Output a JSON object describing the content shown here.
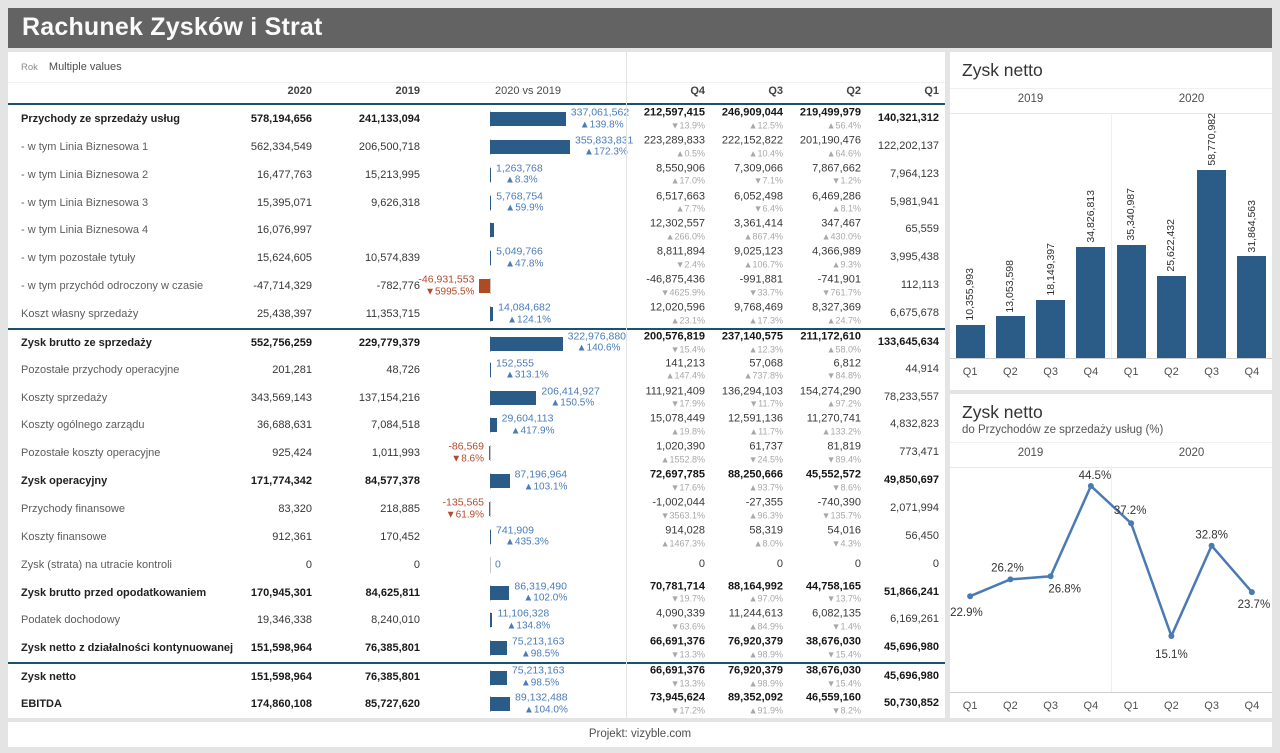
{
  "header": {
    "title": "Rachunek Zysków i Strat"
  },
  "filter": {
    "label": "Rok",
    "value": "Multiple values"
  },
  "colors": {
    "titlebar_bg": "#636363",
    "bar_positive": "#2b5c88",
    "bar_negative": "#b04a22",
    "diff_label_positive": "#4a7cba",
    "diff_label_negative": "#b34a2b",
    "separator_line": "#19536e",
    "line_series": "#4a7ab3"
  },
  "table": {
    "columns": {
      "c2020": "2020",
      "c2019": "2019",
      "cdiff": "2020 vs 2019",
      "q4": "Q4",
      "q3": "Q3",
      "q2": "Q2",
      "q1": "Q1"
    },
    "diff_axis_max": 355833831,
    "rows": [
      {
        "label": "Przychody ze sprzedaży usług",
        "bold": true,
        "sep_above": false,
        "y2020": "578,194,656",
        "y2019": "241,133,094",
        "diff": {
          "num": 337061562,
          "text": "337,061,562",
          "pct": "139.8%",
          "dir": "up",
          "show_label": true
        },
        "quarters": [
          {
            "v": "212,597,415",
            "pct": "13.9%",
            "dir": "down"
          },
          {
            "v": "246,909,044",
            "pct": "12.5%",
            "dir": "up"
          },
          {
            "v": "219,499,979",
            "pct": "56.4%",
            "dir": "up"
          },
          {
            "v": "140,321,312"
          }
        ]
      },
      {
        "label": "- w tym Linia Biznesowa 1",
        "bold": false,
        "sep_above": false,
        "y2020": "562,334,549",
        "y2019": "206,500,718",
        "diff": {
          "num": 355833831,
          "text": "355,833,831",
          "pct": "172.3%",
          "dir": "up",
          "show_label": true
        },
        "quarters": [
          {
            "v": "223,289,833",
            "pct": "0.5%",
            "dir": "up"
          },
          {
            "v": "222,152,822",
            "pct": "10.4%",
            "dir": "up"
          },
          {
            "v": "201,190,476",
            "pct": "64.6%",
            "dir": "up"
          },
          {
            "v": "122,202,137"
          }
        ]
      },
      {
        "label": "- w tym Linia Biznesowa 2",
        "bold": false,
        "sep_above": false,
        "y2020": "16,477,763",
        "y2019": "15,213,995",
        "diff": {
          "num": 1263768,
          "text": "1,263,768",
          "pct": "8.3%",
          "dir": "up",
          "show_label": true
        },
        "quarters": [
          {
            "v": "8,550,906",
            "pct": "17.0%",
            "dir": "up"
          },
          {
            "v": "7,309,066",
            "pct": "7.1%",
            "dir": "down"
          },
          {
            "v": "7,867,662",
            "pct": "1.2%",
            "dir": "down"
          },
          {
            "v": "7,964,123"
          }
        ]
      },
      {
        "label": "- w tym Linia Biznesowa 3",
        "bold": false,
        "sep_above": false,
        "y2020": "15,395,071",
        "y2019": "9,626,318",
        "diff": {
          "num": 5768754,
          "text": "5,768,754",
          "pct": "59.9%",
          "dir": "up",
          "show_label": true
        },
        "quarters": [
          {
            "v": "6,517,663",
            "pct": "7.7%",
            "dir": "up"
          },
          {
            "v": "6,052,498",
            "pct": "6.4%",
            "dir": "down"
          },
          {
            "v": "6,469,286",
            "pct": "8.1%",
            "dir": "up"
          },
          {
            "v": "5,981,941"
          }
        ]
      },
      {
        "label": "- w tym Linia Biznesowa 4",
        "bold": false,
        "sep_above": false,
        "y2020": "16,076,997",
        "y2019": "",
        "diff": {
          "num": 16076997,
          "text": "",
          "pct": "",
          "dir": "up",
          "show_label": false
        },
        "quarters": [
          {
            "v": "12,302,557",
            "pct": "266.0%",
            "dir": "up"
          },
          {
            "v": "3,361,414",
            "pct": "867.4%",
            "dir": "up"
          },
          {
            "v": "347,467",
            "pct": "430.0%",
            "dir": "up"
          },
          {
            "v": "65,559"
          }
        ]
      },
      {
        "label": "- w tym pozostałe tytuły",
        "bold": false,
        "sep_above": false,
        "y2020": "15,624,605",
        "y2019": "10,574,839",
        "diff": {
          "num": 5049766,
          "text": "5,049,766",
          "pct": "47.8%",
          "dir": "up",
          "show_label": true
        },
        "quarters": [
          {
            "v": "8,811,894",
            "pct": "2.4%",
            "dir": "down"
          },
          {
            "v": "9,025,123",
            "pct": "106.7%",
            "dir": "up"
          },
          {
            "v": "4,366,989",
            "pct": "9.3%",
            "dir": "up"
          },
          {
            "v": "3,995,438"
          }
        ]
      },
      {
        "label": "- w tym przychód odroczony w czasie",
        "bold": false,
        "sep_above": false,
        "y2020": "-47,714,329",
        "y2019": "-782,776",
        "diff": {
          "num": -46931553,
          "text": "-46,931,553",
          "pct": "5995.5%",
          "dir": "down",
          "show_label": true
        },
        "quarters": [
          {
            "v": "-46,875,436",
            "pct": "4625.9%",
            "dir": "down"
          },
          {
            "v": "-991,881",
            "pct": "33.7%",
            "dir": "down"
          },
          {
            "v": "-741,901",
            "pct": "761.7%",
            "dir": "down"
          },
          {
            "v": "112,113"
          }
        ]
      },
      {
        "label": "Koszt własny sprzedaży",
        "bold": false,
        "sep_above": false,
        "y2020": "25,438,397",
        "y2019": "11,353,715",
        "diff": {
          "num": 14084682,
          "text": "14,084,682",
          "pct": "124.1%",
          "dir": "up",
          "show_label": true
        },
        "quarters": [
          {
            "v": "12,020,596",
            "pct": "23.1%",
            "dir": "up"
          },
          {
            "v": "9,768,469",
            "pct": "17.3%",
            "dir": "up"
          },
          {
            "v": "8,327,369",
            "pct": "24.7%",
            "dir": "up"
          },
          {
            "v": "6,675,678"
          }
        ]
      },
      {
        "label": "Zysk brutto ze sprzedaży",
        "bold": true,
        "sep_above": true,
        "y2020": "552,756,259",
        "y2019": "229,779,379",
        "diff": {
          "num": 322976880,
          "text": "322,976,880",
          "pct": "140.6%",
          "dir": "up",
          "show_label": true
        },
        "quarters": [
          {
            "v": "200,576,819",
            "pct": "15.4%",
            "dir": "down"
          },
          {
            "v": "237,140,575",
            "pct": "12.3%",
            "dir": "up"
          },
          {
            "v": "211,172,610",
            "pct": "58.0%",
            "dir": "up"
          },
          {
            "v": "133,645,634"
          }
        ]
      },
      {
        "label": "Pozostałe przychody operacyjne",
        "bold": false,
        "sep_above": false,
        "y2020": "201,281",
        "y2019": "48,726",
        "diff": {
          "num": 152555,
          "text": "152,555",
          "pct": "313.1%",
          "dir": "up",
          "show_label": true
        },
        "quarters": [
          {
            "v": "141,213",
            "pct": "147.4%",
            "dir": "up"
          },
          {
            "v": "57,068",
            "pct": "737.8%",
            "dir": "up"
          },
          {
            "v": "6,812",
            "pct": "84.8%",
            "dir": "down"
          },
          {
            "v": "44,914"
          }
        ]
      },
      {
        "label": "Koszty sprzedaży",
        "bold": false,
        "sep_above": false,
        "y2020": "343,569,143",
        "y2019": "137,154,216",
        "diff": {
          "num": 206414927,
          "text": "206,414,927",
          "pct": "150.5%",
          "dir": "up",
          "show_label": true
        },
        "quarters": [
          {
            "v": "111,921,409",
            "pct": "17.9%",
            "dir": "down"
          },
          {
            "v": "136,294,103",
            "pct": "11.7%",
            "dir": "down"
          },
          {
            "v": "154,274,290",
            "pct": "97.2%",
            "dir": "up"
          },
          {
            "v": "78,233,557"
          }
        ]
      },
      {
        "label": "Koszty ogólnego zarządu",
        "bold": false,
        "sep_above": false,
        "y2020": "36,688,631",
        "y2019": "7,084,518",
        "diff": {
          "num": 29604113,
          "text": "29,604,113",
          "pct": "417.9%",
          "dir": "up",
          "show_label": true
        },
        "quarters": [
          {
            "v": "15,078,449",
            "pct": "19.8%",
            "dir": "up"
          },
          {
            "v": "12,591,136",
            "pct": "11.7%",
            "dir": "up"
          },
          {
            "v": "11,270,741",
            "pct": "133.2%",
            "dir": "up"
          },
          {
            "v": "4,832,823"
          }
        ]
      },
      {
        "label": "Pozostałe koszty operacyjne",
        "bold": false,
        "sep_above": false,
        "y2020": "925,424",
        "y2019": "1,011,993",
        "diff": {
          "num": -86569,
          "text": "-86,569",
          "pct": "8.6%",
          "dir": "down",
          "show_label": true
        },
        "quarters": [
          {
            "v": "1,020,390",
            "pct": "1552.8%",
            "dir": "up"
          },
          {
            "v": "61,737",
            "pct": "24.5%",
            "dir": "down"
          },
          {
            "v": "81,819",
            "pct": "89.4%",
            "dir": "down"
          },
          {
            "v": "773,471"
          }
        ]
      },
      {
        "label": "Zysk operacyjny",
        "bold": true,
        "sep_above": false,
        "y2020": "171,774,342",
        "y2019": "84,577,378",
        "diff": {
          "num": 87196964,
          "text": "87,196,964",
          "pct": "103.1%",
          "dir": "up",
          "show_label": true
        },
        "quarters": [
          {
            "v": "72,697,785",
            "pct": "17.6%",
            "dir": "down"
          },
          {
            "v": "88,250,666",
            "pct": "93.7%",
            "dir": "up"
          },
          {
            "v": "45,552,572",
            "pct": "8.6%",
            "dir": "down"
          },
          {
            "v": "49,850,697"
          }
        ]
      },
      {
        "label": "Przychody finansowe",
        "bold": false,
        "sep_above": false,
        "y2020": "83,320",
        "y2019": "218,885",
        "diff": {
          "num": -135565,
          "text": "-135,565",
          "pct": "61.9%",
          "dir": "down",
          "show_label": true
        },
        "quarters": [
          {
            "v": "-1,002,044",
            "pct": "3563.1%",
            "dir": "down"
          },
          {
            "v": "-27,355",
            "pct": "96.3%",
            "dir": "up"
          },
          {
            "v": "-740,390",
            "pct": "135.7%",
            "dir": "down"
          },
          {
            "v": "2,071,994"
          }
        ]
      },
      {
        "label": "Koszty finansowe",
        "bold": false,
        "sep_above": false,
        "y2020": "912,361",
        "y2019": "170,452",
        "diff": {
          "num": 741909,
          "text": "741,909",
          "pct": "435.3%",
          "dir": "up",
          "show_label": true
        },
        "quarters": [
          {
            "v": "914,028",
            "pct": "1467.3%",
            "dir": "up"
          },
          {
            "v": "58,319",
            "pct": "8.0%",
            "dir": "up"
          },
          {
            "v": "54,016",
            "pct": "4.3%",
            "dir": "down"
          },
          {
            "v": "56,450"
          }
        ]
      },
      {
        "label": "Zysk (strata) na utracie kontroli",
        "bold": false,
        "sep_above": false,
        "y2020": "0",
        "y2019": "0",
        "diff": {
          "num": 0,
          "text": "0",
          "pct": "",
          "dir": "up",
          "show_label": true
        },
        "quarters": [
          {
            "v": "0"
          },
          {
            "v": "0"
          },
          {
            "v": "0"
          },
          {
            "v": "0"
          }
        ]
      },
      {
        "label": "Zysk brutto przed opodatkowaniem",
        "bold": true,
        "sep_above": false,
        "y2020": "170,945,301",
        "y2019": "84,625,811",
        "diff": {
          "num": 86319490,
          "text": "86,319,490",
          "pct": "102.0%",
          "dir": "up",
          "show_label": true
        },
        "quarters": [
          {
            "v": "70,781,714",
            "pct": "19.7%",
            "dir": "down"
          },
          {
            "v": "88,164,992",
            "pct": "97.0%",
            "dir": "up"
          },
          {
            "v": "44,758,165",
            "pct": "13.7%",
            "dir": "down"
          },
          {
            "v": "51,866,241"
          }
        ]
      },
      {
        "label": "Podatek dochodowy",
        "bold": false,
        "sep_above": false,
        "y2020": "19,346,338",
        "y2019": "8,240,010",
        "diff": {
          "num": 11106328,
          "text": "11,106,328",
          "pct": "134.8%",
          "dir": "up",
          "show_label": true
        },
        "quarters": [
          {
            "v": "4,090,339",
            "pct": "63.6%",
            "dir": "down"
          },
          {
            "v": "11,244,613",
            "pct": "84.9%",
            "dir": "up"
          },
          {
            "v": "6,082,135",
            "pct": "1.4%",
            "dir": "down"
          },
          {
            "v": "6,169,261"
          }
        ]
      },
      {
        "label": "Zysk netto z działalności kontynuowanej",
        "bold": true,
        "sep_above": false,
        "y2020": "151,598,964",
        "y2019": "76,385,801",
        "diff": {
          "num": 75213163,
          "text": "75,213,163",
          "pct": "98.5%",
          "dir": "up",
          "show_label": true
        },
        "quarters": [
          {
            "v": "66,691,376",
            "pct": "13.3%",
            "dir": "down"
          },
          {
            "v": "76,920,379",
            "pct": "98.9%",
            "dir": "up"
          },
          {
            "v": "38,676,030",
            "pct": "15.4%",
            "dir": "down"
          },
          {
            "v": "45,696,980"
          }
        ]
      },
      {
        "label": "Zysk netto",
        "bold": true,
        "sep_above": true,
        "y2020": "151,598,964",
        "y2019": "76,385,801",
        "diff": {
          "num": 75213163,
          "text": "75,213,163",
          "pct": "98.5%",
          "dir": "up",
          "show_label": true
        },
        "quarters": [
          {
            "v": "66,691,376",
            "pct": "13.3%",
            "dir": "down"
          },
          {
            "v": "76,920,379",
            "pct": "98.9%",
            "dir": "up"
          },
          {
            "v": "38,676,030",
            "pct": "15.4%",
            "dir": "down"
          },
          {
            "v": "45,696,980"
          }
        ]
      },
      {
        "label": "EBITDA",
        "bold": true,
        "sep_above": false,
        "y2020": "174,860,108",
        "y2019": "85,727,620",
        "diff": {
          "num": 89132488,
          "text": "89,132,488",
          "pct": "104.0%",
          "dir": "up",
          "show_label": true
        },
        "quarters": [
          {
            "v": "73,945,624",
            "pct": "17.2%",
            "dir": "down"
          },
          {
            "v": "89,352,092",
            "pct": "91.9%",
            "dir": "up"
          },
          {
            "v": "46,559,160",
            "pct": "8.2%",
            "dir": "down"
          },
          {
            "v": "50,730,852"
          }
        ]
      }
    ]
  },
  "chart_data": [
    {
      "type": "bar",
      "title": "Zysk netto",
      "group_labels": [
        "2019",
        "2020"
      ],
      "categories": [
        "Q1",
        "Q2",
        "Q3",
        "Q4",
        "Q1",
        "Q2",
        "Q3",
        "Q4"
      ],
      "values": [
        10355993,
        13053598,
        18149397,
        34826813,
        35340987,
        25622432,
        58770982,
        31864563
      ],
      "labels": [
        "10,355,993",
        "13,053,598",
        "18,149,397",
        "34,826,813",
        "35,340,987",
        "25,622,432",
        "58,770,982",
        "31,864,563"
      ],
      "bar_color": "#2b5c88",
      "ylim": [
        0,
        60000000
      ],
      "grid": false,
      "legend": "none"
    },
    {
      "type": "line",
      "title": "Zysk netto",
      "subtitle": "do Przychodów ze sprzedaży usług (%)",
      "group_labels": [
        "2019",
        "2020"
      ],
      "categories": [
        "Q1",
        "Q2",
        "Q3",
        "Q4",
        "Q1",
        "Q2",
        "Q3",
        "Q4"
      ],
      "values": [
        22.9,
        26.2,
        26.8,
        44.5,
        37.2,
        15.1,
        32.8,
        23.7
      ],
      "labels": [
        "22.9%",
        "26.2%",
        "26.8%",
        "44.5%",
        "37.2%",
        "15.1%",
        "32.8%",
        "23.7%"
      ],
      "label_offsets": [
        [
          -20,
          20,
          "start"
        ],
        [
          -3,
          -8,
          "middle"
        ],
        [
          14,
          16,
          "middle"
        ],
        [
          4,
          -7,
          "middle"
        ],
        [
          -1,
          -9,
          "middle"
        ],
        [
          0,
          22,
          "middle"
        ],
        [
          0,
          -7,
          "middle"
        ],
        [
          2,
          16,
          "middle"
        ]
      ],
      "line_color": "#4a7ab3",
      "ylim": [
        10,
        50
      ],
      "grid": false,
      "legend": "none"
    }
  ],
  "footer": {
    "text": "Projekt: vizyble.com"
  }
}
